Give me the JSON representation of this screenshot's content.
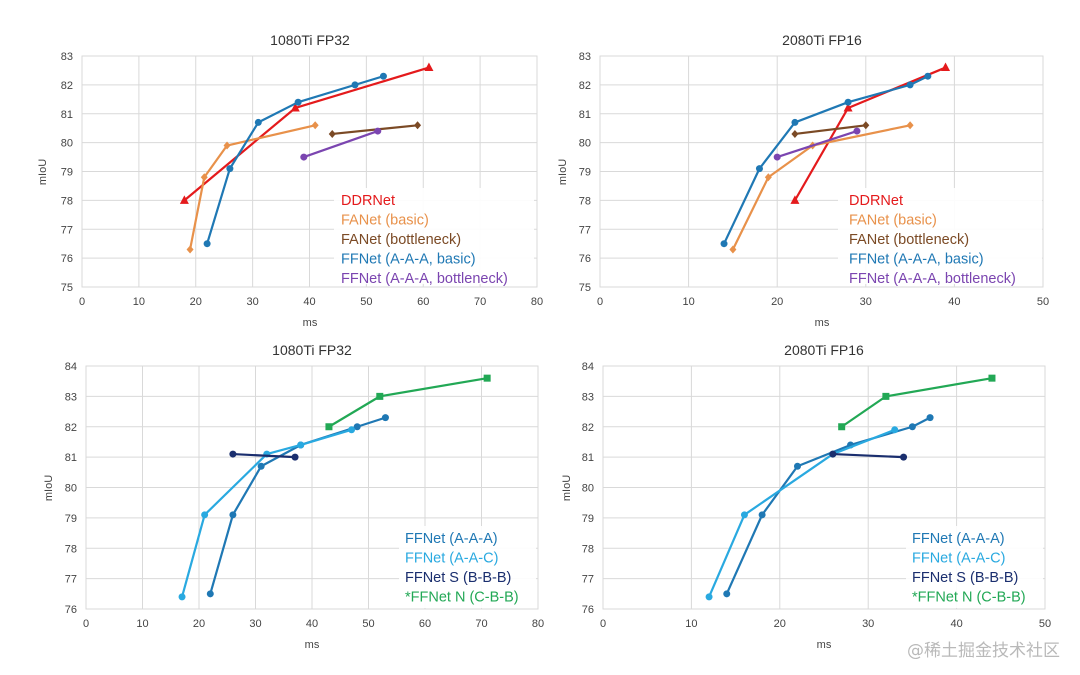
{
  "watermark": "@稀土掘金技术社区",
  "chart_data": [
    {
      "type": "line",
      "title": "1080Ti FP32",
      "xlabel": "ms",
      "ylabel": "mIoU",
      "xlim": [
        0,
        80
      ],
      "ylim": [
        75,
        83
      ],
      "xticks": [
        0,
        10,
        20,
        30,
        40,
        50,
        60,
        70,
        80
      ],
      "yticks": [
        75,
        76,
        77,
        78,
        79,
        80,
        81,
        82,
        83
      ],
      "grid": true,
      "legend_position": "bottom-right",
      "series": [
        {
          "name": "DDRNet",
          "color": "#e41a1c",
          "marker": "triangle",
          "x": [
            18,
            37.5,
            61
          ],
          "y": [
            78.0,
            81.2,
            82.6
          ]
        },
        {
          "name": "FANet (basic)",
          "color": "#e8914a",
          "marker": "diamond",
          "x": [
            19,
            21.5,
            25.5,
            41
          ],
          "y": [
            76.3,
            78.8,
            79.9,
            80.6
          ]
        },
        {
          "name": "FANet (bottleneck)",
          "color": "#7b4a25",
          "marker": "diamond",
          "x": [
            44,
            59
          ],
          "y": [
            80.3,
            80.6
          ]
        },
        {
          "name": "FFNet (A-A-A, basic)",
          "color": "#1f78b4",
          "marker": "circle",
          "x": [
            22,
            26,
            31,
            38,
            48,
            53
          ],
          "y": [
            76.5,
            79.1,
            80.7,
            81.4,
            82.0,
            82.3
          ]
        },
        {
          "name": "FFNet (A-A-A, bottleneck)",
          "color": "#7b45b0",
          "marker": "circle",
          "x": [
            39,
            52
          ],
          "y": [
            79.5,
            80.4
          ]
        }
      ]
    },
    {
      "type": "line",
      "title": "2080Ti FP16",
      "xlabel": "ms",
      "ylabel": "mIoU",
      "xlim": [
        0,
        50
      ],
      "ylim": [
        75,
        83
      ],
      "xticks": [
        0,
        10,
        20,
        30,
        40,
        50
      ],
      "yticks": [
        75,
        76,
        77,
        78,
        79,
        80,
        81,
        82,
        83
      ],
      "grid": true,
      "legend_position": "bottom-right",
      "series": [
        {
          "name": "DDRNet",
          "color": "#e41a1c",
          "marker": "triangle",
          "x": [
            22,
            28,
            39
          ],
          "y": [
            78.0,
            81.2,
            82.6
          ]
        },
        {
          "name": "FANet (basic)",
          "color": "#e8914a",
          "marker": "diamond",
          "x": [
            15,
            19,
            24,
            35
          ],
          "y": [
            76.3,
            78.8,
            79.9,
            80.6
          ]
        },
        {
          "name": "FANet (bottleneck)",
          "color": "#7b4a25",
          "marker": "diamond",
          "x": [
            22,
            30
          ],
          "y": [
            80.3,
            80.6
          ]
        },
        {
          "name": "FFNet (A-A-A, basic)",
          "color": "#1f78b4",
          "marker": "circle",
          "x": [
            14,
            18,
            22,
            28,
            35,
            37
          ],
          "y": [
            76.5,
            79.1,
            80.7,
            81.4,
            82.0,
            82.3
          ]
        },
        {
          "name": "FFNet (A-A-A, bottleneck)",
          "color": "#7b45b0",
          "marker": "circle",
          "x": [
            20,
            29
          ],
          "y": [
            79.5,
            80.4
          ]
        }
      ]
    },
    {
      "type": "line",
      "title": "1080Ti FP32",
      "xlabel": "ms",
      "ylabel": "mIoU",
      "xlim": [
        0,
        80
      ],
      "ylim": [
        76,
        84
      ],
      "xticks": [
        0,
        10,
        20,
        30,
        40,
        50,
        60,
        70,
        80
      ],
      "yticks": [
        76,
        77,
        78,
        79,
        80,
        81,
        82,
        83,
        84
      ],
      "grid": true,
      "legend_position": "bottom-right",
      "series": [
        {
          "name": "FFNet (A-A-A)",
          "color": "#1f78b4",
          "marker": "circle",
          "x": [
            22,
            26,
            31,
            38,
            48,
            53
          ],
          "y": [
            76.5,
            79.1,
            80.7,
            81.4,
            82.0,
            82.3
          ]
        },
        {
          "name": "FFNet (A-A-C)",
          "color": "#29a9e0",
          "marker": "circle",
          "x": [
            17,
            21,
            32,
            38,
            47
          ],
          "y": [
            76.4,
            79.1,
            81.1,
            81.4,
            81.9
          ]
        },
        {
          "name": "FFNet S (B-B-B)",
          "color": "#1a2e6e",
          "marker": "circle",
          "x": [
            26,
            37
          ],
          "y": [
            81.1,
            81.0
          ]
        },
        {
          "name": "*FFNet N (C-B-B)",
          "color": "#22a855",
          "marker": "square",
          "x": [
            43,
            52,
            71
          ],
          "y": [
            82.0,
            83.0,
            83.6
          ]
        }
      ]
    },
    {
      "type": "line",
      "title": "2080Ti FP16",
      "xlabel": "ms",
      "ylabel": "mIoU",
      "xlim": [
        0,
        50
      ],
      "ylim": [
        76,
        84
      ],
      "xticks": [
        0,
        10,
        20,
        30,
        40,
        50
      ],
      "yticks": [
        76,
        77,
        78,
        79,
        80,
        81,
        82,
        83,
        84
      ],
      "grid": true,
      "legend_position": "bottom-right",
      "series": [
        {
          "name": "FFNet (A-A-A)",
          "color": "#1f78b4",
          "marker": "circle",
          "x": [
            14,
            18,
            22,
            28,
            35,
            37
          ],
          "y": [
            76.5,
            79.1,
            80.7,
            81.4,
            82.0,
            82.3
          ]
        },
        {
          "name": "FFNet (A-A-C)",
          "color": "#29a9e0",
          "marker": "circle",
          "x": [
            12,
            16,
            26,
            33
          ],
          "y": [
            76.4,
            79.1,
            81.1,
            81.9
          ]
        },
        {
          "name": "FFNet S (B-B-B)",
          "color": "#1a2e6e",
          "marker": "circle",
          "x": [
            26,
            34
          ],
          "y": [
            81.1,
            81.0
          ]
        },
        {
          "name": "*FFNet N (C-B-B)",
          "color": "#22a855",
          "marker": "square",
          "x": [
            27,
            32,
            44
          ],
          "y": [
            82.0,
            83.0,
            83.6
          ]
        }
      ]
    }
  ]
}
